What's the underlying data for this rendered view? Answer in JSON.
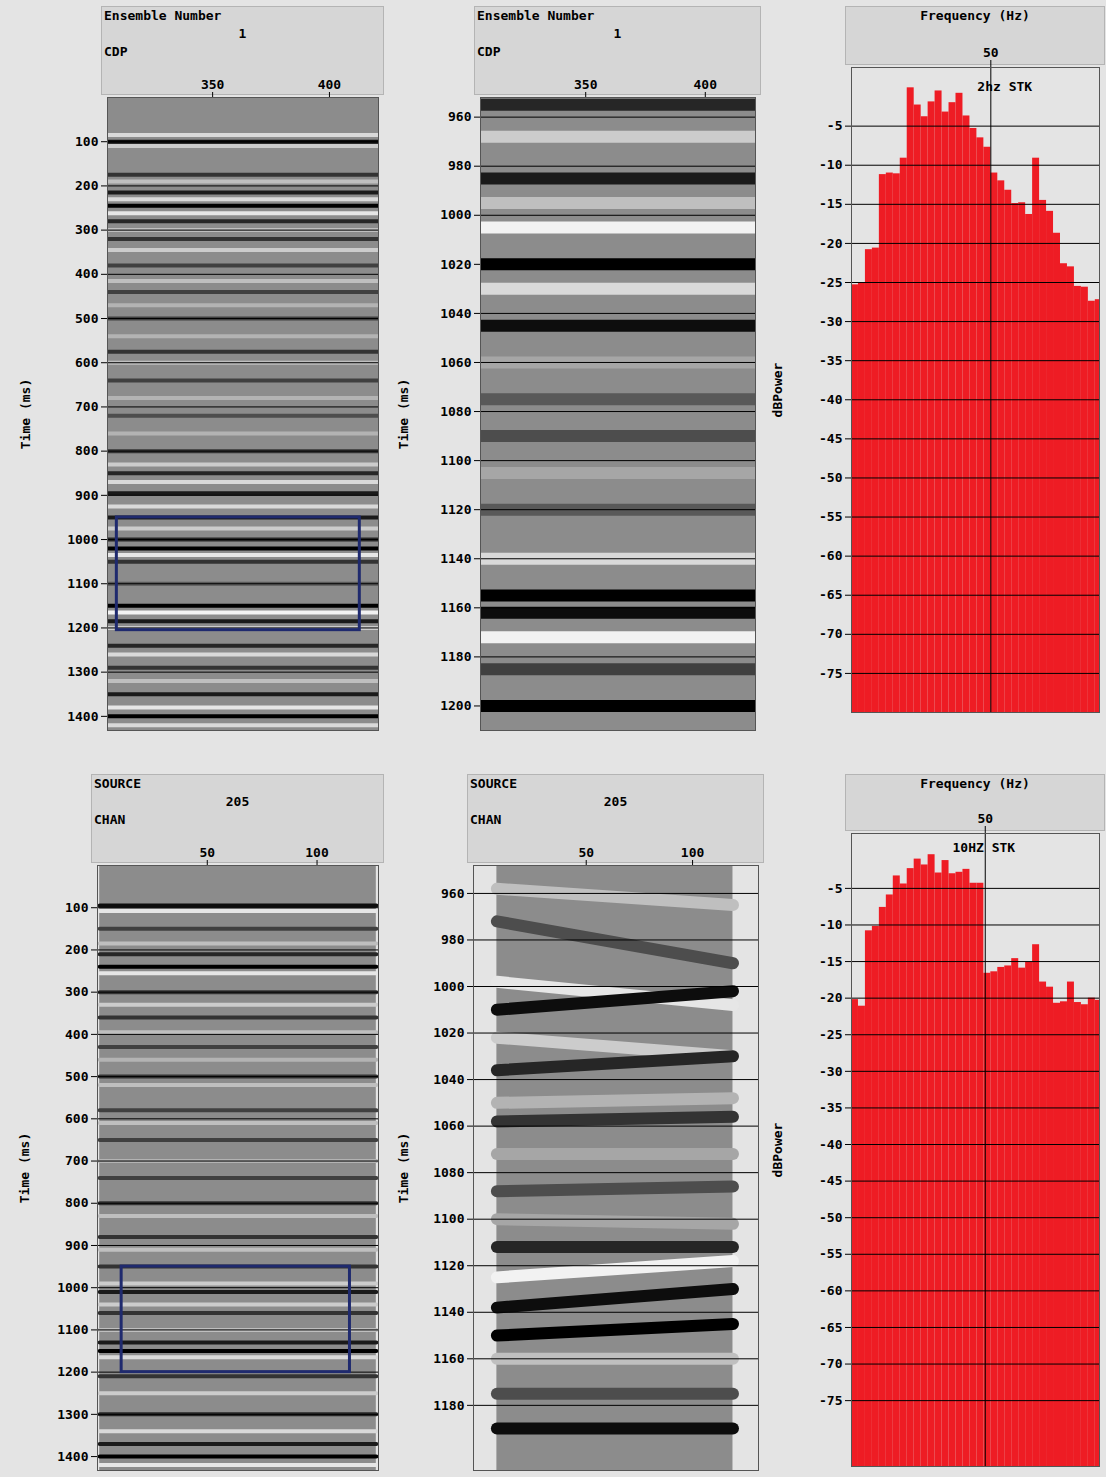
{
  "chart_data": [
    {
      "type": "seismic",
      "header": {
        "title": "Ensemble Number",
        "value": "1",
        "x_label": "CDP"
      },
      "y_label": "Time (ms)",
      "xlim": [
        305,
        421
      ],
      "xticks": [
        350,
        400
      ],
      "ylim": [
        0,
        1432
      ],
      "yticks": [
        100,
        200,
        300,
        400,
        500,
        600,
        700,
        800,
        900,
        1000,
        1100,
        1200,
        1300,
        1400
      ],
      "traces": [
        305,
        421
      ],
      "amp_range": [
        -1,
        1
      ],
      "events": [
        {
          "t": [
            85,
            85
          ],
          "amp": -0.7
        },
        {
          "t": [
            100,
            100
          ],
          "amp": 0.9
        },
        {
          "t": [
            110,
            110
          ],
          "amp": -0.6
        },
        {
          "t": [
            175,
            175
          ],
          "amp": 0.6
        },
        {
          "t": [
            190,
            190
          ],
          "amp": -0.5
        },
        {
          "t": [
            215,
            215
          ],
          "amp": 0.8
        },
        {
          "t": [
            230,
            230
          ],
          "amp": -0.7
        },
        {
          "t": [
            245,
            245
          ],
          "amp": 1.0
        },
        {
          "t": [
            262,
            262
          ],
          "amp": -0.8
        },
        {
          "t": [
            280,
            280
          ],
          "amp": 0.7
        },
        {
          "t": [
            300,
            300
          ],
          "amp": -0.5
        },
        {
          "t": [
            320,
            320
          ],
          "amp": 0.6
        },
        {
          "t": [
            345,
            345
          ],
          "amp": -0.6
        },
        {
          "t": [
            380,
            380
          ],
          "amp": 0.5
        },
        {
          "t": [
            415,
            415
          ],
          "amp": -0.5
        },
        {
          "t": [
            440,
            440
          ],
          "amp": 0.5
        },
        {
          "t": [
            470,
            470
          ],
          "amp": -0.4
        },
        {
          "t": [
            500,
            500
          ],
          "amp": 0.5
        },
        {
          "t": [
            540,
            540
          ],
          "amp": -0.4
        },
        {
          "t": [
            575,
            575
          ],
          "amp": 0.6
        },
        {
          "t": [
            600,
            600
          ],
          "amp": -0.5
        },
        {
          "t": [
            640,
            640
          ],
          "amp": 0.5
        },
        {
          "t": [
            680,
            680
          ],
          "amp": -0.4
        },
        {
          "t": [
            720,
            720
          ],
          "amp": 0.4
        },
        {
          "t": [
            760,
            760
          ],
          "amp": -0.4
        },
        {
          "t": [
            800,
            800
          ],
          "amp": 0.6
        },
        {
          "t": [
            830,
            830
          ],
          "amp": -0.6
        },
        {
          "t": [
            850,
            850
          ],
          "amp": 0.7
        },
        {
          "t": [
            870,
            870
          ],
          "amp": -0.7
        },
        {
          "t": [
            895,
            895
          ],
          "amp": 0.8
        },
        {
          "t": [
            925,
            925
          ],
          "amp": -0.7
        },
        {
          "t": [
            950,
            950
          ],
          "amp": 0.8
        },
        {
          "t": [
            975,
            975
          ],
          "amp": -0.6
        },
        {
          "t": [
            1000,
            1000
          ],
          "amp": 0.7
        },
        {
          "t": [
            1020,
            1020
          ],
          "amp": 1.0
        },
        {
          "t": [
            1035,
            1035
          ],
          "amp": -0.8
        },
        {
          "t": [
            1050,
            1050
          ],
          "amp": 0.6
        },
        {
          "t": [
            1100,
            1100
          ],
          "amp": 0.3
        },
        {
          "t": [
            1150,
            1150
          ],
          "amp": 1.0
        },
        {
          "t": [
            1165,
            1165
          ],
          "amp": -0.9
        },
        {
          "t": [
            1185,
            1185
          ],
          "amp": 0.8
        },
        {
          "t": [
            1200,
            1200
          ],
          "amp": -0.6
        },
        {
          "t": [
            1240,
            1240
          ],
          "amp": 0.7
        },
        {
          "t": [
            1260,
            1260
          ],
          "amp": -0.7
        },
        {
          "t": [
            1290,
            1290
          ],
          "amp": 0.6
        },
        {
          "t": [
            1320,
            1320
          ],
          "amp": -0.5
        },
        {
          "t": [
            1350,
            1350
          ],
          "amp": 0.8
        },
        {
          "t": [
            1380,
            1380
          ],
          "amp": -0.8
        },
        {
          "t": [
            1400,
            1400
          ],
          "amp": 1.0
        },
        {
          "t": [
            1420,
            1420
          ],
          "amp": -0.7
        }
      ],
      "box": {
        "x": [
          309,
          413
        ],
        "y": [
          950,
          1205
        ]
      },
      "grid": true
    },
    {
      "type": "seismic",
      "header": {
        "title": "Ensemble Number",
        "value": "1",
        "x_label": "CDP"
      },
      "y_label": "Time (ms)",
      "xlim": [
        306,
        421
      ],
      "xticks": [
        350,
        400
      ],
      "ylim": [
        952,
        1210
      ],
      "yticks": [
        960,
        980,
        1000,
        1020,
        1040,
        1060,
        1080,
        1100,
        1120,
        1140,
        1160,
        1180,
        1200
      ],
      "traces": [
        306,
        421
      ],
      "amp_range": [
        -1,
        1
      ],
      "events": [
        {
          "t": [
            955,
            955
          ],
          "amp": 0.7
        },
        {
          "t": [
            968,
            968
          ],
          "amp": -0.6
        },
        {
          "t": [
            985,
            985
          ],
          "amp": 0.8
        },
        {
          "t": [
            995,
            995
          ],
          "amp": -0.5
        },
        {
          "t": [
            1005,
            1005
          ],
          "amp": -0.9
        },
        {
          "t": [
            1020,
            1020
          ],
          "amp": 1.0
        },
        {
          "t": [
            1030,
            1030
          ],
          "amp": -0.7
        },
        {
          "t": [
            1045,
            1045
          ],
          "amp": 0.9
        },
        {
          "t": [
            1060,
            1060
          ],
          "amp": -0.3
        },
        {
          "t": [
            1075,
            1075
          ],
          "amp": 0.3
        },
        {
          "t": [
            1090,
            1090
          ],
          "amp": 0.4
        },
        {
          "t": [
            1105,
            1105
          ],
          "amp": -0.3
        },
        {
          "t": [
            1120,
            1120
          ],
          "amp": 0.3
        },
        {
          "t": [
            1140,
            1140
          ],
          "amp": -0.7
        },
        {
          "t": [
            1155,
            1155
          ],
          "amp": 1.0
        },
        {
          "t": [
            1162,
            1162
          ],
          "amp": 0.9
        },
        {
          "t": [
            1172,
            1172
          ],
          "amp": -0.9
        },
        {
          "t": [
            1185,
            1185
          ],
          "amp": 0.5
        },
        {
          "t": [
            1200,
            1200
          ],
          "amp": 1.0
        }
      ],
      "grid": true
    },
    {
      "type": "bar",
      "x_label": "Frequency (Hz)",
      "y_label": "dBPower",
      "xlim": [
        0,
        89
      ],
      "xticks": [
        50
      ],
      "ylim": [
        -80,
        2.5
      ],
      "yticks": [
        -5,
        -10,
        -15,
        -20,
        -25,
        -30,
        -35,
        -40,
        -45,
        -50,
        -55,
        -60,
        -65,
        -70,
        -75
      ],
      "bins": [
        0,
        2.5,
        5,
        7.5,
        10,
        12.5,
        15,
        17.5,
        20,
        22.5,
        25,
        27.5,
        30,
        32.5,
        35,
        37.5,
        40,
        42.5,
        45,
        47.5,
        50,
        52.5,
        55,
        57.5,
        60,
        62.5,
        65,
        67.5,
        70,
        72.5,
        75,
        77.5,
        80,
        82.5,
        85,
        87.5,
        90
      ],
      "values": [
        -25.3,
        -25.0,
        -20.8,
        -20.6,
        -11.2,
        -11.0,
        -11.1,
        -9.1,
        -0.1,
        -2.3,
        -3.8,
        -1.9,
        -0.5,
        -3.2,
        -2.0,
        -0.8,
        -3.7,
        -5.3,
        -6.5,
        -7.7,
        -11.0,
        -12.0,
        -13.2,
        -14.9,
        -14.8,
        -16.3,
        -9.1,
        -14.5,
        -15.9,
        -18.7,
        -22.6,
        -23.0,
        -25.5,
        -25.6,
        -27.4,
        -27.2
      ],
      "color": "#ee1c24",
      "annotation": {
        "text": "2hz STK",
        "x": 55,
        "y": 0
      },
      "grid": true
    },
    {
      "type": "seismic",
      "header": {
        "title": "SOURCE",
        "value": "205",
        "x_label": "CHAN"
      },
      "y_label": "Time (ms)",
      "xlim": [
        0,
        128
      ],
      "xticks": [
        50,
        100
      ],
      "ylim": [
        0,
        1433
      ],
      "yticks": [
        100,
        200,
        300,
        400,
        500,
        600,
        700,
        800,
        900,
        1000,
        1100,
        1200,
        1300,
        1400
      ],
      "traces": [
        1,
        127
      ],
      "amp_range": [
        -1,
        1
      ],
      "events": [
        {
          "t": [
            95,
            95
          ],
          "amp": 0.9
        },
        {
          "t": [
            108,
            108
          ],
          "amp": -0.8
        },
        {
          "t": [
            150,
            150
          ],
          "amp": 0.5
        },
        {
          "t": [
            185,
            185
          ],
          "amp": -0.5
        },
        {
          "t": [
            210,
            210
          ],
          "amp": 0.7
        },
        {
          "t": [
            240,
            240
          ],
          "amp": 1.0
        },
        {
          "t": [
            255,
            255
          ],
          "amp": -0.8
        },
        {
          "t": [
            300,
            300
          ],
          "amp": 0.6
        },
        {
          "t": [
            330,
            330
          ],
          "amp": -0.6
        },
        {
          "t": [
            360,
            360
          ],
          "amp": 0.6
        },
        {
          "t": [
            395,
            395
          ],
          "amp": -0.5
        },
        {
          "t": [
            430,
            430
          ],
          "amp": 0.5
        },
        {
          "t": [
            460,
            460
          ],
          "amp": -0.4
        },
        {
          "t": [
            500,
            500
          ],
          "amp": 0.6
        },
        {
          "t": [
            520,
            520
          ],
          "amp": -0.5
        },
        {
          "t": [
            580,
            580
          ],
          "amp": 0.5
        },
        {
          "t": [
            610,
            610
          ],
          "amp": -0.5
        },
        {
          "t": [
            650,
            650
          ],
          "amp": 0.5
        },
        {
          "t": [
            700,
            700
          ],
          "amp": -0.4
        },
        {
          "t": [
            740,
            740
          ],
          "amp": 0.5
        },
        {
          "t": [
            800,
            800
          ],
          "amp": 0.6
        },
        {
          "t": [
            830,
            830
          ],
          "amp": -0.5
        },
        {
          "t": [
            880,
            880
          ],
          "amp": 0.6
        },
        {
          "t": [
            910,
            910
          ],
          "amp": -0.5
        },
        {
          "t": [
            950,
            950
          ],
          "amp": 0.6
        },
        {
          "t": [
            990,
            990
          ],
          "amp": -0.6
        },
        {
          "t": [
            1010,
            1010
          ],
          "amp": 0.8
        },
        {
          "t": [
            1040,
            1040
          ],
          "amp": -0.6
        },
        {
          "t": [
            1060,
            1060
          ],
          "amp": 0.6
        },
        {
          "t": [
            1100,
            1100
          ],
          "amp": -0.5
        },
        {
          "t": [
            1130,
            1130
          ],
          "amp": 0.8
        },
        {
          "t": [
            1150,
            1150
          ],
          "amp": 1.0
        },
        {
          "t": [
            1165,
            1165
          ],
          "amp": -0.7
        },
        {
          "t": [
            1210,
            1210
          ],
          "amp": 0.6
        },
        {
          "t": [
            1250,
            1250
          ],
          "amp": -0.6
        },
        {
          "t": [
            1300,
            1300
          ],
          "amp": 0.7
        },
        {
          "t": [
            1340,
            1340
          ],
          "amp": -0.7
        },
        {
          "t": [
            1370,
            1370
          ],
          "amp": 0.8
        },
        {
          "t": [
            1400,
            1400
          ],
          "amp": 1.0
        },
        {
          "t": [
            1420,
            1420
          ],
          "amp": -0.8
        }
      ],
      "box": {
        "x": [
          11,
          115
        ],
        "y": [
          950,
          1200
        ]
      },
      "grid": true
    },
    {
      "type": "seismic",
      "header": {
        "title": "SOURCE",
        "value": "205",
        "x_label": "CHAN"
      },
      "y_label": "Time (ms)",
      "xlim": [
        -3,
        131
      ],
      "xticks": [
        50,
        100
      ],
      "ylim": [
        948,
        1208
      ],
      "yticks": [
        960,
        980,
        1000,
        1020,
        1040,
        1060,
        1080,
        1100,
        1120,
        1140,
        1160,
        1180
      ],
      "traces": [
        8,
        119
      ],
      "amp_range": [
        -1,
        1
      ],
      "events": [
        {
          "t": [
            958,
            965
          ],
          "amp": -0.5
        },
        {
          "t": [
            972,
            990
          ],
          "amp": 0.4
        },
        {
          "t": [
            998,
            1008
          ],
          "amp": -0.8
        },
        {
          "t": [
            1010,
            1002
          ],
          "amp": 0.9
        },
        {
          "t": [
            1022,
            1030
          ],
          "amp": -0.6
        },
        {
          "t": [
            1036,
            1030
          ],
          "amp": 0.7
        },
        {
          "t": [
            1050,
            1048
          ],
          "amp": -0.4
        },
        {
          "t": [
            1058,
            1056
          ],
          "amp": 0.6
        },
        {
          "t": [
            1072,
            1072
          ],
          "amp": -0.3
        },
        {
          "t": [
            1088,
            1086
          ],
          "amp": 0.4
        },
        {
          "t": [
            1100,
            1102
          ],
          "amp": -0.3
        },
        {
          "t": [
            1112,
            1112
          ],
          "amp": 0.7
        },
        {
          "t": [
            1125,
            1118
          ],
          "amp": -0.9
        },
        {
          "t": [
            1138,
            1130
          ],
          "amp": 0.9
        },
        {
          "t": [
            1150,
            1145
          ],
          "amp": 1.0
        },
        {
          "t": [
            1160,
            1160
          ],
          "amp": -0.5
        },
        {
          "t": [
            1175,
            1175
          ],
          "amp": 0.4
        },
        {
          "t": [
            1190,
            1190
          ],
          "amp": 0.9
        }
      ],
      "grid": true
    },
    {
      "type": "bar",
      "x_label": "Frequency (Hz)",
      "y_label": "dBPower",
      "xlim": [
        2,
        91
      ],
      "xticks": [
        50
      ],
      "ylim": [
        -84,
        2.5
      ],
      "yticks": [
        -5,
        -10,
        -15,
        -20,
        -25,
        -30,
        -35,
        -40,
        -45,
        -50,
        -55,
        -60,
        -65,
        -70,
        -75
      ],
      "bins": [
        2,
        4.5,
        7,
        9.5,
        12,
        14.5,
        17,
        19.5,
        22,
        24.5,
        27,
        29.5,
        32,
        34.5,
        37,
        39.5,
        42,
        44.5,
        47,
        49.5,
        52,
        54.5,
        57,
        59.5,
        62,
        64.5,
        67,
        69.5,
        72,
        74.5,
        77,
        79.5,
        82,
        84.5,
        87,
        89.5,
        92
      ],
      "values": [
        -20.2,
        -21.1,
        -10.8,
        -10.2,
        -7.6,
        -5.9,
        -3.3,
        -4.4,
        -2.3,
        -1.0,
        -1.8,
        -0.4,
        -2.9,
        -1.2,
        -3.0,
        -2.8,
        -2.4,
        -4.3,
        -4.3,
        -16.6,
        -16.4,
        -15.8,
        -15.6,
        -14.6,
        -15.9,
        -15.1,
        -12.7,
        -17.8,
        -18.5,
        -20.7,
        -20.5,
        -17.8,
        -20.6,
        -20.9,
        -20.0,
        -20.3
      ],
      "color": "#ee1c24",
      "annotation": {
        "text": "10HZ STK",
        "x": 49.5,
        "y": 0.5
      },
      "grid": true
    }
  ]
}
